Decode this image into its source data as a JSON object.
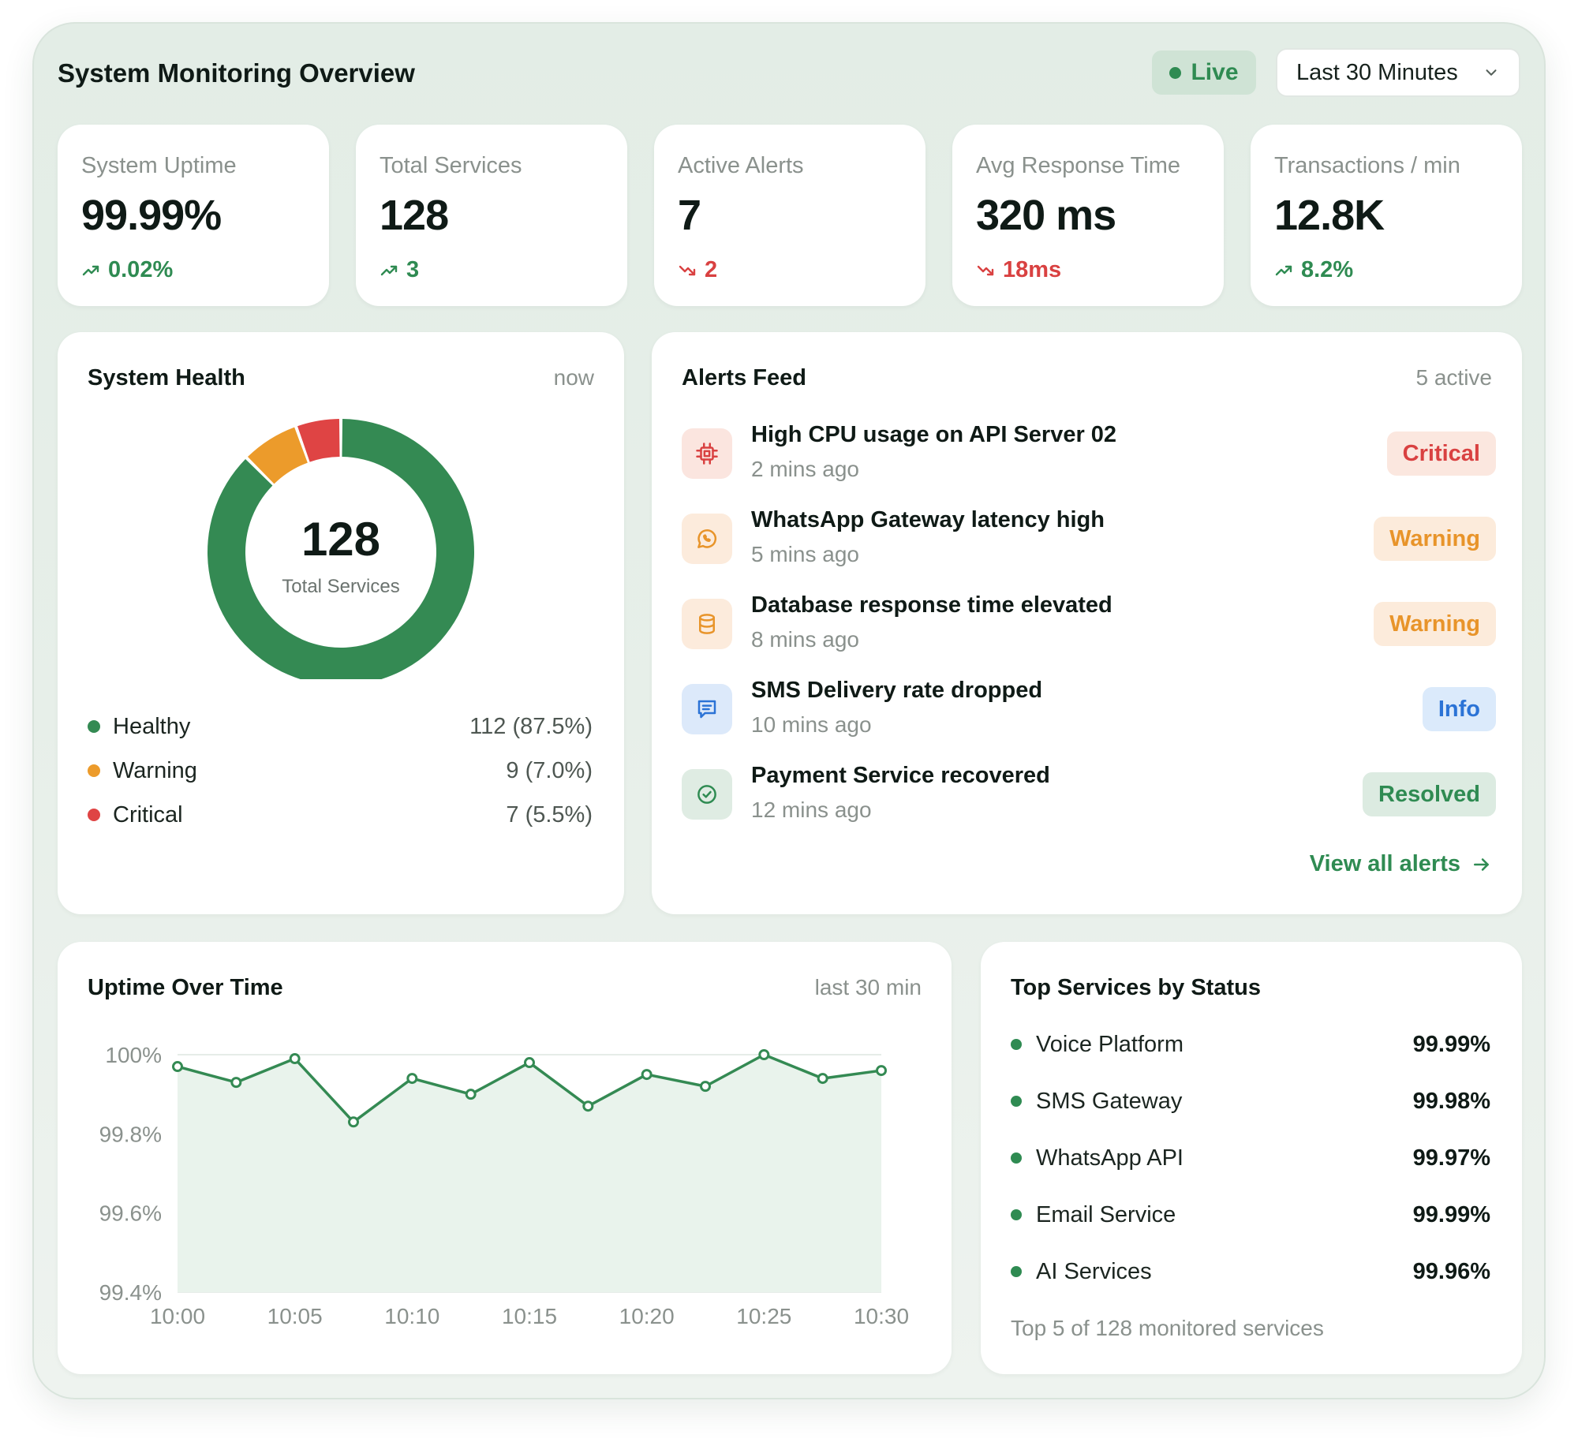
{
  "header": {
    "title": "System Monitoring Overview",
    "live_label": "Live",
    "time_range": "Last 30 Minutes"
  },
  "kpis": [
    {
      "label": "System Uptime",
      "value": "99.99%",
      "change": "0.02%",
      "direction": "up"
    },
    {
      "label": "Total Services",
      "value": "128",
      "change": "3",
      "direction": "up"
    },
    {
      "label": "Active Alerts",
      "value": "7",
      "change": "2",
      "direction": "down"
    },
    {
      "label": "Avg Response Time",
      "value": "320 ms",
      "change": "18ms",
      "direction": "down"
    },
    {
      "label": "Transactions / min",
      "value": "12.8K",
      "change": "8.2%",
      "direction": "up"
    }
  ],
  "health": {
    "title": "System Health",
    "meta": "now",
    "center_value": "128",
    "center_label": "Total Services",
    "segments": [
      {
        "label": "Healthy",
        "value": "112 (87.5%)",
        "count": 112,
        "color": "#348a53"
      },
      {
        "label": "Warning",
        "value": "9 (7.0%)",
        "count": 9,
        "color": "#ec9b2b"
      },
      {
        "label": "Critical",
        "value": "7 (5.5%)",
        "count": 7,
        "color": "#df4444"
      }
    ]
  },
  "alerts": {
    "title": "Alerts Feed",
    "meta": "5 active",
    "items": [
      {
        "title": "High CPU usage on API Server 02",
        "time": "2 mins ago",
        "badge": "Critical",
        "icon": "cpu-icon"
      },
      {
        "title": "WhatsApp Gateway latency high",
        "time": "5 mins ago",
        "badge": "Warning",
        "icon": "whatsapp-icon"
      },
      {
        "title": "Database response time elevated",
        "time": "8 mins ago",
        "badge": "Warning",
        "icon": "database-icon"
      },
      {
        "title": "SMS Delivery rate dropped",
        "time": "10 mins ago",
        "badge": "Info",
        "icon": "message-icon"
      },
      {
        "title": "Payment Service recovered",
        "time": "12 mins ago",
        "badge": "Resolved",
        "icon": "check-circle-icon"
      }
    ],
    "view_all": "View all alerts"
  },
  "uptime": {
    "title": "Uptime Over Time",
    "meta": "last 30 min"
  },
  "chart_data": {
    "type": "area",
    "x": [
      "10:00",
      "10:03",
      "10:05",
      "10:08",
      "10:10",
      "10:13",
      "10:15",
      "10:18",
      "10:20",
      "10:23",
      "10:25",
      "10:28",
      "10:30"
    ],
    "xticks": [
      "10:00",
      "10:05",
      "10:10",
      "10:15",
      "10:20",
      "10:25",
      "10:30"
    ],
    "y": [
      99.97,
      99.93,
      99.99,
      99.83,
      99.94,
      99.9,
      99.98,
      99.87,
      99.95,
      99.92,
      100.0,
      99.94,
      99.96
    ],
    "yticks": [
      "100%",
      "99.8%",
      "99.6%",
      "99.4%"
    ],
    "ylim": [
      99.4,
      100
    ],
    "grid": true,
    "color": "#348a53"
  },
  "services": {
    "title": "Top Services by Status",
    "items": [
      {
        "name": "Voice Platform",
        "value": "99.99%"
      },
      {
        "name": "SMS Gateway",
        "value": "99.98%"
      },
      {
        "name": "WhatsApp API",
        "value": "99.97%"
      },
      {
        "name": "Email Service",
        "value": "99.99%"
      },
      {
        "name": "AI Services",
        "value": "99.96%"
      }
    ],
    "footer": "Top 5 of 128 monitored services"
  },
  "colors": {
    "accent": "#2f8b52",
    "critical": "#d94141",
    "warning": "#e8942a",
    "info": "#2b73d6"
  }
}
